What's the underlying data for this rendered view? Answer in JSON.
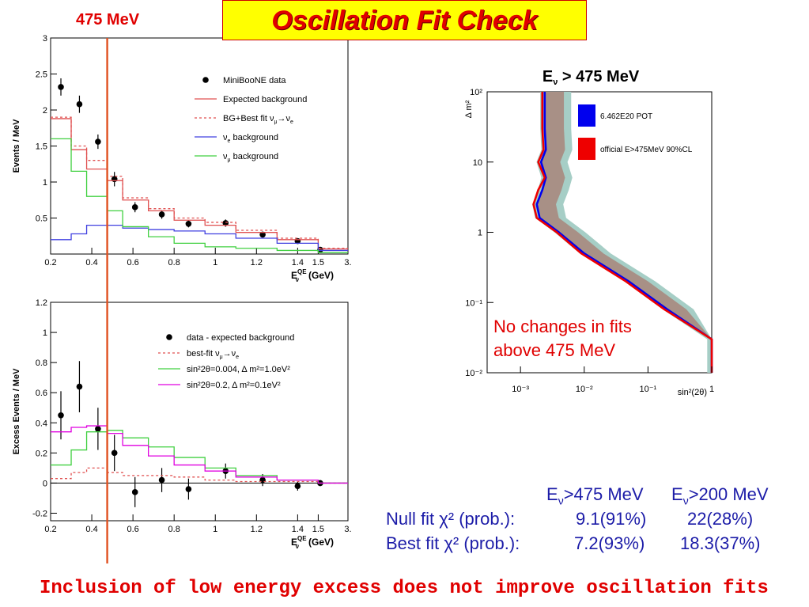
{
  "header": {
    "title": "Oscillation Fit Check",
    "energy_tag": "475 MeV"
  },
  "colors": {
    "accent_red": "#e00000",
    "title_bg": "#ffff00",
    "text_blue": "#1c1ca8",
    "cut_line": "#e05020"
  },
  "chart_data": [
    {
      "type": "line",
      "name": "events-spectrum",
      "ylabel": "Events / MeV",
      "xlabel": "E",
      "xlabel_sup": "QE",
      "xlabel_sub": "ν",
      "xlabel_unit": "(GeV)",
      "x_ticks": [
        "0.2",
        "0.4",
        "0.6",
        "0.8",
        "1",
        "1.2",
        "1.4",
        "1.5",
        "3."
      ],
      "y_ticks": [
        "0.5",
        "1",
        "1.5",
        "2",
        "2.5",
        "3"
      ],
      "ylim": [
        0,
        3
      ],
      "bin_edges": [
        0.2,
        0.3,
        0.375,
        0.475,
        0.55,
        0.675,
        0.8,
        0.95,
        1.1,
        1.3,
        1.5,
        3.0
      ],
      "legend": [
        {
          "label": "MiniBooNE data",
          "style": "marker",
          "color": "#000000"
        },
        {
          "label": "Expected background",
          "style": "solid",
          "color": "#e05050"
        },
        {
          "label": "BG+Best fit ν",
          "label_tail": "→ν",
          "sub1": "μ",
          "sub2": "e",
          "style": "dashed",
          "color": "#e05050"
        },
        {
          "label": "ν",
          "sub1": "e",
          "label_tail": " background",
          "style": "solid",
          "color": "#4040e0"
        },
        {
          "label": "ν",
          "sub1": "μ",
          "label_tail": " background",
          "style": "solid",
          "color": "#40d040"
        }
      ],
      "series": [
        {
          "name": "MiniBooNE data",
          "type": "points",
          "x": [
            0.25,
            0.34,
            0.43,
            0.51,
            0.61,
            0.74,
            0.87,
            1.05,
            1.23,
            1.4,
            1.6
          ],
          "y": [
            2.32,
            2.08,
            1.56,
            1.04,
            0.65,
            0.55,
            0.42,
            0.43,
            0.27,
            0.18,
            0.06
          ],
          "err": [
            0.12,
            0.12,
            0.1,
            0.1,
            0.07,
            0.06,
            0.05,
            0.05,
            0.04,
            0.03,
            0.02
          ]
        },
        {
          "name": "Expected background",
          "type": "step",
          "values": [
            1.88,
            1.45,
            1.18,
            1.02,
            0.75,
            0.6,
            0.47,
            0.4,
            0.3,
            0.2,
            0.07
          ]
        },
        {
          "name": "BG+Best fit",
          "type": "step",
          "values": [
            1.9,
            1.5,
            1.3,
            1.08,
            0.78,
            0.63,
            0.5,
            0.44,
            0.33,
            0.22,
            0.08
          ]
        },
        {
          "name": "nue background",
          "type": "step",
          "values": [
            0.2,
            0.28,
            0.4,
            0.4,
            0.36,
            0.34,
            0.32,
            0.28,
            0.22,
            0.15,
            0.05
          ]
        },
        {
          "name": "numu background",
          "type": "step",
          "values": [
            1.6,
            1.15,
            0.8,
            0.6,
            0.38,
            0.24,
            0.15,
            0.1,
            0.08,
            0.05,
            0.02
          ]
        }
      ]
    },
    {
      "type": "line",
      "name": "excess-spectrum",
      "ylabel": "Excess Events / MeV",
      "xlabel": "E",
      "xlabel_sup": "QE",
      "xlabel_sub": "ν",
      "xlabel_unit": "(GeV)",
      "x_ticks": [
        "0.2",
        "0.4",
        "0.6",
        "0.8",
        "1",
        "1.2",
        "1.4",
        "1.5",
        "3."
      ],
      "y_ticks": [
        "-0.2",
        "0",
        "0.2",
        "0.4",
        "0.6",
        "0.8",
        "1",
        "1.2"
      ],
      "ylim": [
        -0.25,
        1.2
      ],
      "bin_edges": [
        0.2,
        0.3,
        0.375,
        0.475,
        0.55,
        0.675,
        0.8,
        0.95,
        1.1,
        1.3,
        1.5,
        3.0
      ],
      "legend": [
        {
          "label": "data - expected background",
          "style": "marker",
          "color": "#000000"
        },
        {
          "label": "best-fit ν",
          "label_tail": "→ν",
          "sub1": "μ",
          "sub2": "e",
          "style": "dashed",
          "color": "#e05050"
        },
        {
          "label": "sin²2θ=0.004, Δ m²=1.0eV²",
          "style": "solid",
          "color": "#40d040"
        },
        {
          "label": "sin²2θ=0.2, Δ m²=0.1eV²",
          "style": "solid",
          "color": "#e000e0"
        }
      ],
      "series": [
        {
          "name": "data - expected background",
          "type": "points",
          "x": [
            0.25,
            0.34,
            0.43,
            0.51,
            0.61,
            0.74,
            0.87,
            1.05,
            1.23,
            1.4,
            1.6
          ],
          "y": [
            0.45,
            0.64,
            0.36,
            0.2,
            -0.06,
            0.02,
            -0.04,
            0.08,
            0.02,
            -0.02,
            0.0
          ],
          "err": [
            0.16,
            0.17,
            0.14,
            0.12,
            0.1,
            0.08,
            0.07,
            0.05,
            0.04,
            0.03,
            0.02
          ]
        },
        {
          "name": "best-fit",
          "type": "step",
          "values": [
            0.03,
            0.07,
            0.1,
            0.07,
            0.05,
            0.05,
            0.04,
            0.02,
            0.01,
            0.01,
            0.0
          ]
        },
        {
          "name": "sin2=0.004 dm2=1.0",
          "type": "step",
          "values": [
            0.12,
            0.22,
            0.34,
            0.35,
            0.3,
            0.24,
            0.17,
            0.1,
            0.05,
            0.02,
            0.0
          ]
        },
        {
          "name": "sin2=0.2 dm2=0.1",
          "type": "step",
          "values": [
            0.34,
            0.37,
            0.38,
            0.33,
            0.25,
            0.18,
            0.12,
            0.08,
            0.04,
            0.02,
            0.0
          ]
        }
      ]
    },
    {
      "type": "line",
      "name": "contour",
      "title": "E",
      "title_sub": "ν",
      "title_tail": " > 475 MeV",
      "ylabel": "Δ m²",
      "xlabel": "sin²(2θ)",
      "x_log": true,
      "y_log": true,
      "xlim": [
        0.0003,
        1
      ],
      "ylim": [
        0.01,
        100
      ],
      "x_ticks": [
        "10⁻³",
        "10⁻²",
        "10⁻¹",
        "1"
      ],
      "y_ticks": [
        "10⁻²",
        "10⁻¹",
        "1",
        "10",
        "10²"
      ],
      "legend": [
        {
          "label": "6.462E20 POT",
          "color": "#0000ee"
        },
        {
          "label": "official E>475MeV 90%CL",
          "color": "#ee0000"
        }
      ],
      "series": [
        {
          "name": "6.462E20 POT",
          "x": [
            0.0024,
            0.0024,
            0.0025,
            0.0021,
            0.0025,
            0.0022,
            0.0018,
            0.002,
            0.004,
            0.01,
            0.05,
            0.2,
            1.0,
            1.0
          ],
          "y": [
            100,
            30,
            15,
            10,
            6,
            4,
            2.5,
            1.6,
            1.0,
            0.5,
            0.2,
            0.08,
            0.03,
            0.01
          ]
        },
        {
          "name": "official E>475MeV 90%CL",
          "x": [
            0.0022,
            0.0022,
            0.0023,
            0.0019,
            0.0024,
            0.0019,
            0.0016,
            0.0018,
            0.0037,
            0.009,
            0.045,
            0.18,
            1.0,
            1.0
          ],
          "y": [
            100,
            30,
            15,
            10,
            6,
            4,
            2.5,
            1.6,
            1.0,
            0.5,
            0.2,
            0.08,
            0.03,
            0.01
          ]
        }
      ]
    }
  ],
  "note": {
    "line1": "No changes in fits",
    "line2": "above 475 MeV"
  },
  "fit_table": {
    "header_col1": "E",
    "header_col1_sub": "ν",
    "header_col1_tail": ">475 MeV",
    "header_col2": "E",
    "header_col2_sub": "ν",
    "header_col2_tail": ">200 MeV",
    "rows": [
      {
        "label": "Null fit χ² (prob.):",
        "v1": "9.1(91%)",
        "v2": "22(28%)"
      },
      {
        "label": "Best fit χ² (prob.):",
        "v1": "7.2(93%)",
        "v2": "18.3(37%)"
      }
    ]
  },
  "footer": "Inclusion of low energy excess does not improve oscillation fits"
}
